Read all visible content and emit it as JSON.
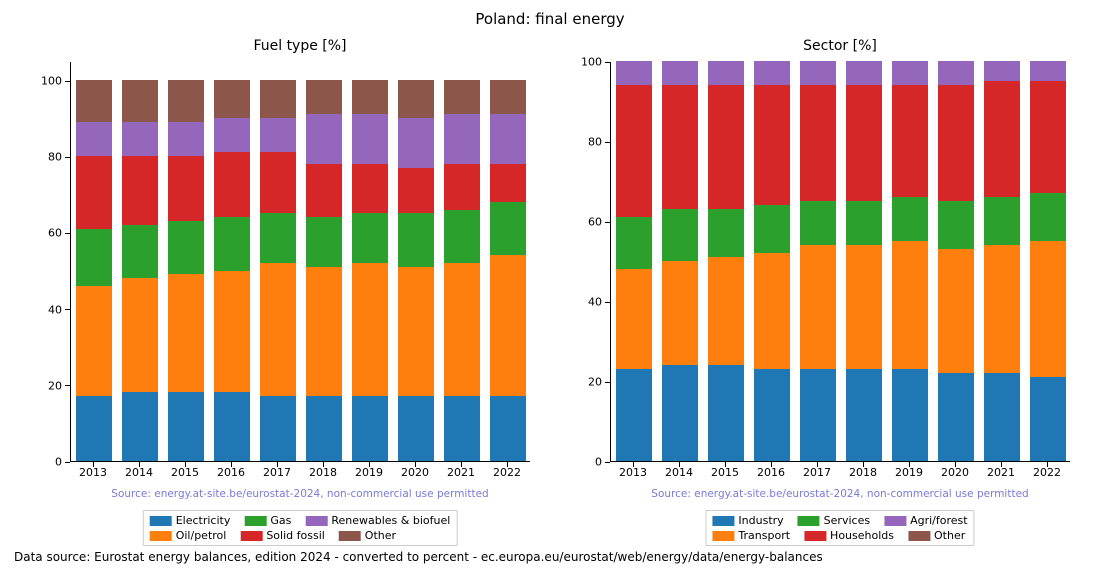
{
  "suptitle": "Poland: final energy",
  "footer": "Data source: Eurostat energy balances, edition 2024 - converted to percent - ec.europa.eu/eurostat/web/energy/data/energy-balances",
  "watermark": "Source: energy.at-site.be/eurostat-2024, non-commercial use permitted",
  "years": [
    "2013",
    "2014",
    "2015",
    "2016",
    "2017",
    "2018",
    "2019",
    "2020",
    "2021",
    "2022"
  ],
  "colors": {
    "c0": "#1f77b4",
    "c1": "#ff7f0e",
    "c2": "#2ca02c",
    "c3": "#d62728",
    "c4": "#9467bd",
    "c5": "#8c564b"
  },
  "axis": {
    "ytick_step": 20,
    "bar_width_frac": 0.8,
    "background_color": "#ffffff",
    "tick_fontsize": 11,
    "title_fontsize": 14
  },
  "left": {
    "title": "Fuel type [%]",
    "ymax": 105,
    "series": [
      {
        "name": "Electricity",
        "color_key": "c0",
        "values": [
          17,
          18,
          18,
          18,
          17,
          17,
          17,
          17,
          17,
          17
        ]
      },
      {
        "name": "Oil/petrol",
        "color_key": "c1",
        "values": [
          29,
          30,
          31,
          32,
          35,
          34,
          35,
          34,
          35,
          37
        ]
      },
      {
        "name": "Gas",
        "color_key": "c2",
        "values": [
          15,
          14,
          14,
          14,
          13,
          13,
          13,
          14,
          14,
          14
        ]
      },
      {
        "name": "Solid fossil",
        "color_key": "c3",
        "values": [
          19,
          18,
          17,
          17,
          16,
          14,
          13,
          12,
          12,
          10
        ]
      },
      {
        "name": "Renewables & biofuel",
        "color_key": "c4",
        "values": [
          9,
          9,
          9,
          9,
          9,
          13,
          13,
          13,
          13,
          13
        ]
      },
      {
        "name": "Other",
        "color_key": "c5",
        "values": [
          11,
          11,
          11,
          10,
          10,
          9,
          9,
          10,
          9,
          9
        ]
      }
    ],
    "legend_rows": [
      [
        "Electricity",
        "Gas",
        "Renewables & biofuel"
      ],
      [
        "Oil/petrol",
        "Solid fossil",
        "Other"
      ]
    ]
  },
  "right": {
    "title": "Sector [%]",
    "ymax": 100,
    "series": [
      {
        "name": "Industry",
        "color_key": "c0",
        "values": [
          23,
          24,
          24,
          23,
          23,
          23,
          23,
          22,
          22,
          21
        ]
      },
      {
        "name": "Transport",
        "color_key": "c1",
        "values": [
          25,
          26,
          27,
          29,
          31,
          31,
          32,
          31,
          32,
          34
        ]
      },
      {
        "name": "Services",
        "color_key": "c2",
        "values": [
          13,
          13,
          12,
          12,
          11,
          11,
          11,
          12,
          12,
          12
        ]
      },
      {
        "name": "Households",
        "color_key": "c3",
        "values": [
          33,
          31,
          31,
          30,
          29,
          29,
          28,
          29,
          29,
          28
        ]
      },
      {
        "name": "Agri/forest",
        "color_key": "c4",
        "values": [
          6,
          6,
          6,
          6,
          6,
          6,
          6,
          6,
          5,
          5
        ]
      },
      {
        "name": "Other",
        "color_key": "c5",
        "values": [
          0,
          0,
          0,
          0,
          0,
          0,
          0,
          0,
          0,
          0
        ]
      }
    ],
    "legend_rows": [
      [
        "Industry",
        "Services",
        "Agri/forest"
      ],
      [
        "Transport",
        "Households",
        "Other"
      ]
    ]
  }
}
